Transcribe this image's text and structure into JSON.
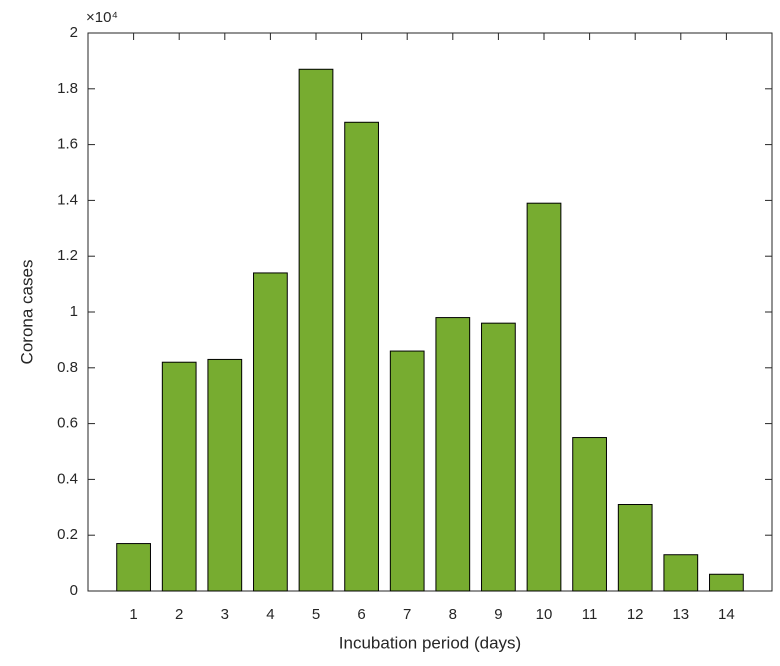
{
  "chart_data": {
    "type": "bar",
    "x_label": "Incubation period (days)",
    "y_label": "Corona cases",
    "y_multiplier": "×10⁴",
    "categories": [
      "1",
      "2",
      "3",
      "4",
      "5",
      "6",
      "7",
      "8",
      "9",
      "10",
      "11",
      "12",
      "13",
      "14"
    ],
    "values": [
      0.17,
      0.82,
      0.83,
      1.14,
      1.87,
      1.68,
      0.86,
      0.98,
      0.96,
      1.39,
      0.55,
      0.31,
      0.13,
      0.06
    ],
    "color": "#77ac30",
    "ylim": [
      0,
      2
    ],
    "yticks": [
      0,
      0.2,
      0.4,
      0.6,
      0.8,
      1,
      1.2,
      1.4,
      1.6,
      1.8,
      2
    ],
    "grid": false
  }
}
